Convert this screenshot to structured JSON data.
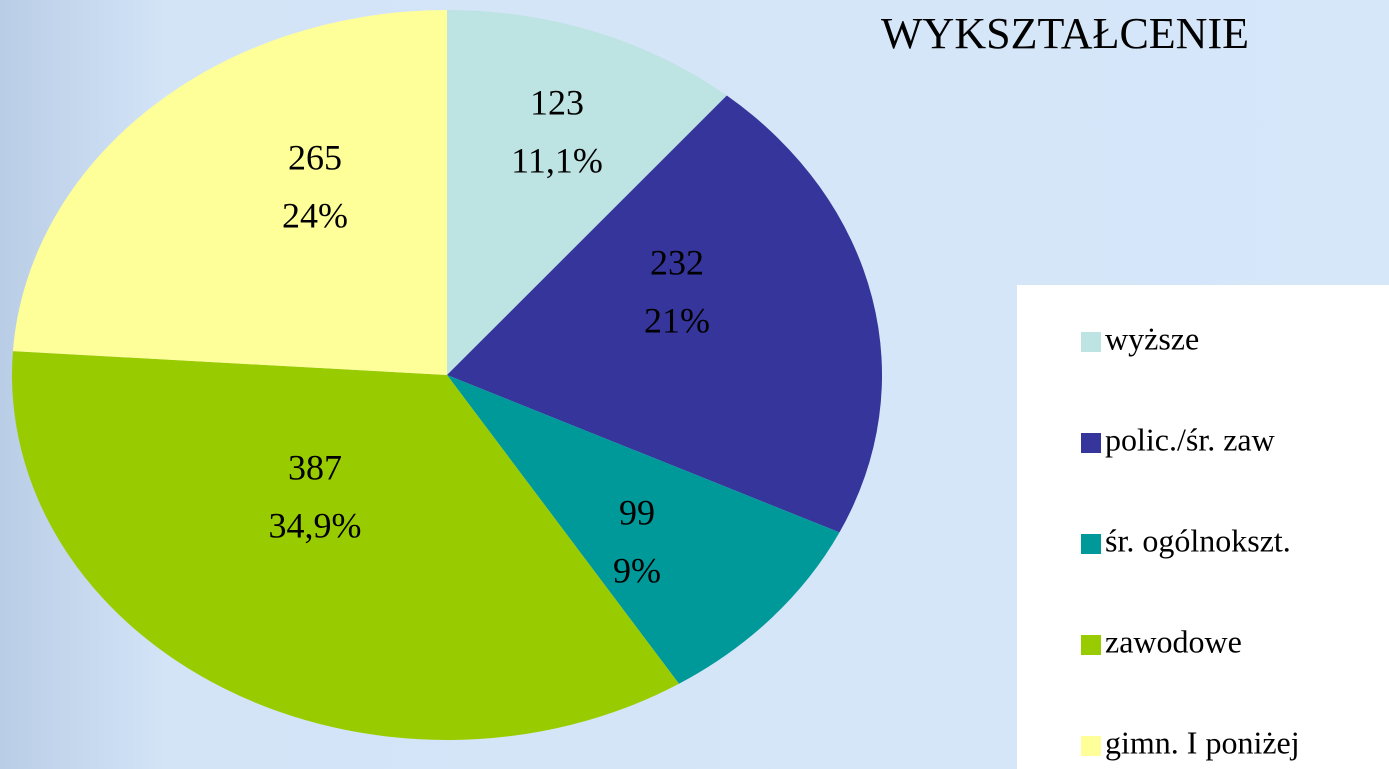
{
  "chart_data": {
    "type": "pie",
    "title": "WYKSZTAŁCENIE",
    "categories": [
      "wyższe",
      "polic./śr. zaw",
      "śr. ogólnokszt.",
      "zawodowe",
      "gimn. I poniżej"
    ],
    "values": [
      123,
      232,
      99,
      387,
      265
    ],
    "percentages": [
      11.1,
      21,
      9,
      34.9,
      24
    ],
    "percentage_labels": [
      "11,1%",
      "21%",
      "9%",
      "34,9%",
      "24%"
    ],
    "colors": [
      "#bde3e3",
      "#35359b",
      "#009999",
      "#99cc00",
      "#ffff99"
    ],
    "legend": "right"
  }
}
